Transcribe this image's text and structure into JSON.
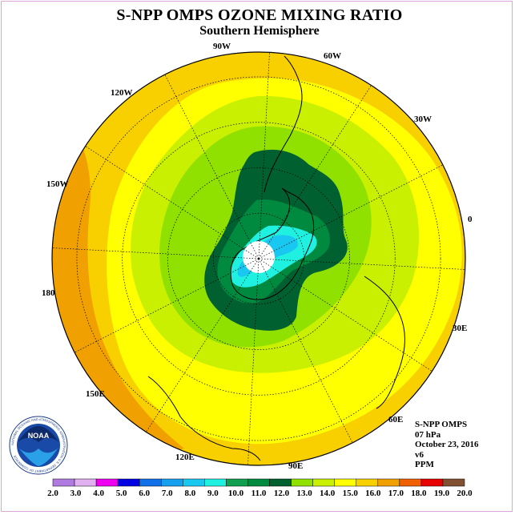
{
  "title": "S-NPP OMPS OZONE MIXING RATIO",
  "subtitle": "Southern Hemisphere",
  "longitude_labels": [
    "90W",
    "60W",
    "120W",
    "30W",
    "150W",
    "0",
    "180",
    "30E",
    "150E",
    "60E",
    "120E",
    "90E"
  ],
  "info": {
    "instrument": "S-NPP OMPS",
    "level": "07 hPa",
    "date": "October 23, 2016",
    "version": "v6",
    "units": "PPM"
  },
  "logo": {
    "text": "NOAA",
    "ring_text": "NATIONAL OCEANIC AND ATMOSPHERIC ADMINISTRATION U.S. DEPARTMENT OF COMMERCE"
  },
  "colorbar": {
    "labels": [
      "2.0",
      "3.0",
      "4.0",
      "5.0",
      "6.0",
      "7.0",
      "8.0",
      "9.0",
      "10.0",
      "11.0",
      "12.0",
      "13.0",
      "14.0",
      "15.0",
      "16.0",
      "17.0",
      "18.0",
      "19.0",
      "20.0"
    ],
    "colors": [
      "#b07be0",
      "#e0b0f0",
      "#f000f0",
      "#0000e0",
      "#1070e8",
      "#18a0f0",
      "#18c8f0",
      "#20f0e0",
      "#10a050",
      "#008a40",
      "#006030",
      "#90e000",
      "#c8f000",
      "#ffff00",
      "#f8d000",
      "#f0a000",
      "#f06000",
      "#e80000",
      "#805030"
    ]
  }
}
